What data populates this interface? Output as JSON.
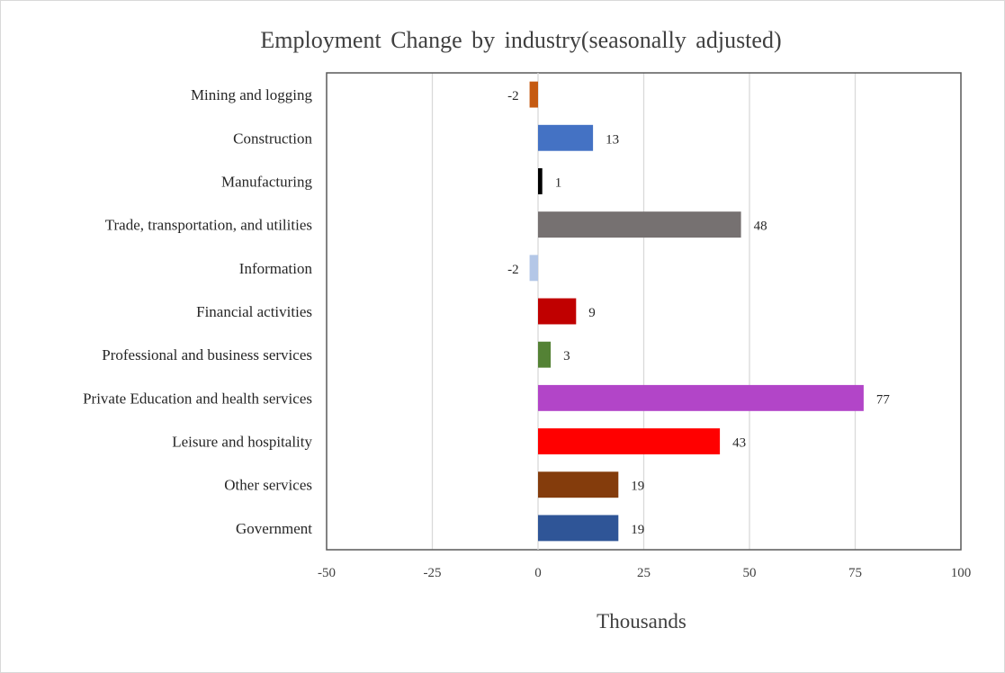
{
  "chart_data": {
    "type": "bar",
    "orientation": "horizontal",
    "title": "Employment Change by industry(seasonally adjusted)",
    "xlabel": "Thousands",
    "ylabel": "",
    "xlim": [
      -50,
      100
    ],
    "xticks": [
      -50,
      -25,
      0,
      25,
      50,
      75,
      100
    ],
    "grid": true,
    "legend": "none",
    "categories": [
      "Mining and logging",
      "Construction",
      "Manufacturing",
      "Trade, transportation, and utilities",
      "Information",
      "Financial activities",
      "Professional and business services",
      "Private Education and health services",
      "Leisure and hospitality",
      "Other services",
      "Government"
    ],
    "values": [
      -2,
      13,
      1,
      48,
      -2,
      9,
      3,
      77,
      43,
      19,
      19
    ],
    "colors": [
      "#c55a11",
      "#4472c4",
      "#000000",
      "#767171",
      "#b4c7e7",
      "#c00000",
      "#548235",
      "#b245c8",
      "#ff0000",
      "#843c0c",
      "#2f5597"
    ]
  }
}
